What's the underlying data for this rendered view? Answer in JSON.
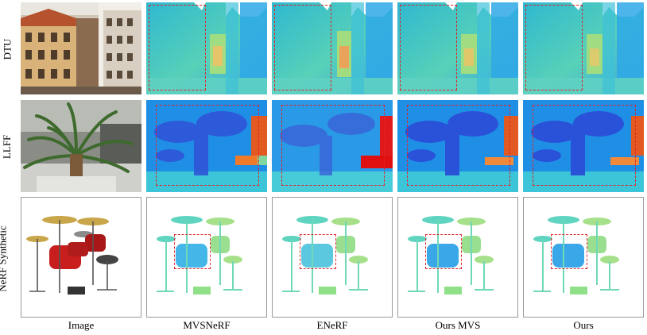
{
  "rows": [
    {
      "label": "DTU"
    },
    {
      "label": "LLFF"
    },
    {
      "label": "NeRF Synthetic"
    }
  ],
  "columns": [
    {
      "label": "Image"
    },
    {
      "label": "MVSNeRF"
    },
    {
      "label": "ENeRF"
    },
    {
      "label": "Ours MVS"
    },
    {
      "label": "Ours"
    }
  ],
  "colors": {
    "highlight_box": "#e2232a",
    "depth_near": "#2b3fd6",
    "depth_mid": "#35c8c8",
    "depth_far": "#e0461e"
  }
}
